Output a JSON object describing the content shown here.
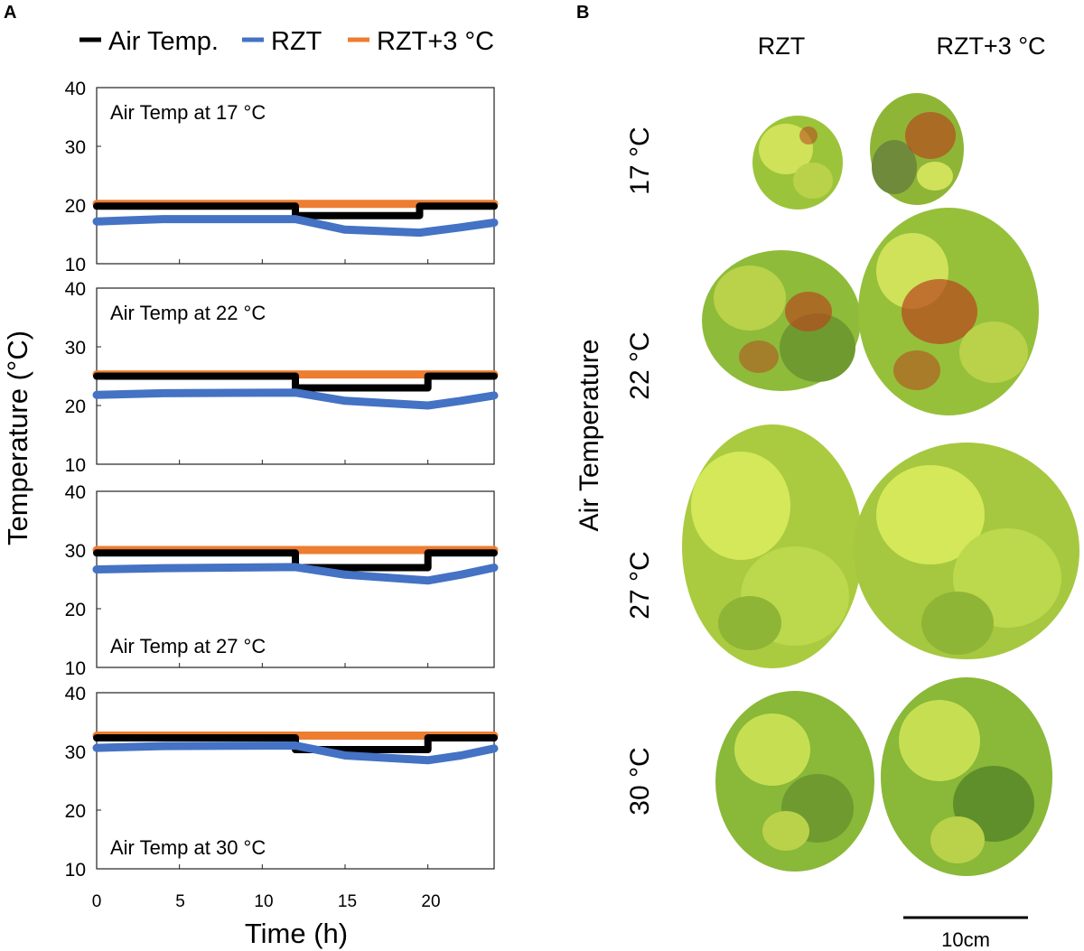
{
  "panel_a_label": "A",
  "panel_b_label": "B",
  "legend": [
    {
      "label": "Air Temp.",
      "color": "#000000"
    },
    {
      "label": "RZT",
      "color": "#4472c4"
    },
    {
      "label": "RZT+3 °C",
      "color": "#ed7d31"
    }
  ],
  "y_axis_title": "Temperature (°C)",
  "x_axis_title": "Time (h)",
  "x_ticks": [
    "0",
    "5",
    "10",
    "15",
    "20"
  ],
  "chart_data": [
    {
      "type": "line",
      "annotation": "Air Temp at 17 °C",
      "annotation_position": "top-left",
      "x": [
        0,
        12,
        12,
        19.5,
        19.5,
        24
      ],
      "xlim": [
        0,
        24
      ],
      "ylim": [
        10,
        40
      ],
      "y_ticks": [
        "10",
        "20",
        "30",
        "40"
      ],
      "series": [
        {
          "name": "Air Temp.",
          "color": "#000000",
          "x": [
            0,
            12,
            12,
            19.5,
            19.5,
            24
          ],
          "values": [
            19.8,
            19.8,
            18.2,
            18.2,
            19.8,
            19.8
          ]
        },
        {
          "name": "RZT",
          "color": "#4472c4",
          "x": [
            0,
            4,
            12,
            15,
            19.5,
            22,
            24
          ],
          "values": [
            17.2,
            17.6,
            17.6,
            15.8,
            15.3,
            16.2,
            17.0
          ]
        },
        {
          "name": "RZT+3 °C",
          "color": "#ed7d31",
          "x": [
            0,
            24
          ],
          "values": [
            20.2,
            20.2
          ]
        }
      ]
    },
    {
      "type": "line",
      "annotation": "Air Temp at 22 °C",
      "annotation_position": "top-left",
      "xlim": [
        0,
        24
      ],
      "ylim": [
        10,
        40
      ],
      "y_ticks": [
        "10",
        "20",
        "30",
        "40"
      ],
      "series": [
        {
          "name": "Air Temp.",
          "color": "#000000",
          "x": [
            0,
            12,
            12,
            20,
            20,
            24
          ],
          "values": [
            25.0,
            25.0,
            23.0,
            23.0,
            25.0,
            25.0
          ]
        },
        {
          "name": "RZT",
          "color": "#4472c4",
          "x": [
            0,
            4,
            12,
            15,
            20,
            22,
            24
          ],
          "values": [
            21.8,
            22.1,
            22.2,
            20.8,
            20.0,
            20.8,
            21.7
          ]
        },
        {
          "name": "RZT+3 °C",
          "color": "#ed7d31",
          "x": [
            0,
            24
          ],
          "values": [
            25.3,
            25.3
          ]
        }
      ]
    },
    {
      "type": "line",
      "annotation": "Air Temp at 27 °C",
      "annotation_position": "bottom-left",
      "xlim": [
        0,
        24
      ],
      "ylim": [
        10,
        40
      ],
      "y_ticks": [
        "10",
        "20",
        "30",
        "40"
      ],
      "series": [
        {
          "name": "Air Temp.",
          "color": "#000000",
          "x": [
            0,
            12,
            12,
            20,
            20,
            24
          ],
          "values": [
            29.5,
            29.5,
            27.0,
            27.0,
            29.5,
            29.5
          ]
        },
        {
          "name": "RZT",
          "color": "#4472c4",
          "x": [
            0,
            4,
            12,
            15,
            20,
            22,
            24
          ],
          "values": [
            26.7,
            26.9,
            27.1,
            25.8,
            24.8,
            25.8,
            27.0
          ]
        },
        {
          "name": "RZT+3 °C",
          "color": "#ed7d31",
          "x": [
            0,
            24
          ],
          "values": [
            30.0,
            30.0
          ]
        }
      ]
    },
    {
      "type": "line",
      "annotation": "Air Temp at 30 °C",
      "annotation_position": "bottom-left",
      "xlim": [
        0,
        24
      ],
      "ylim": [
        10,
        40
      ],
      "y_ticks": [
        "10",
        "20",
        "30",
        "40"
      ],
      "series": [
        {
          "name": "Air Temp.",
          "color": "#000000",
          "x": [
            0,
            12,
            12,
            20,
            20,
            24
          ],
          "values": [
            32.3,
            32.3,
            30.3,
            30.3,
            32.3,
            32.3
          ]
        },
        {
          "name": "RZT",
          "color": "#4472c4",
          "x": [
            0,
            4,
            12,
            15,
            20,
            22,
            24
          ],
          "values": [
            30.6,
            30.9,
            31.0,
            29.3,
            28.5,
            29.3,
            30.5
          ]
        },
        {
          "name": "RZT+3 °C",
          "color": "#ed7d31",
          "x": [
            0,
            24
          ],
          "values": [
            32.7,
            32.7
          ]
        }
      ]
    }
  ],
  "panel_b": {
    "column_headers": [
      "RZT",
      "RZT+3 °C"
    ],
    "row_axis_title": "Air Temperature",
    "row_labels": [
      "17 °C",
      "22 °C",
      "27 °C",
      "30 °C"
    ],
    "scale_bar_label": "10cm",
    "colors": {
      "leaf_green_light": "#cfe25a",
      "leaf_green": "#9cc43a",
      "leaf_green_dark": "#5f8f2a",
      "leaf_red": "#b8441c"
    }
  }
}
